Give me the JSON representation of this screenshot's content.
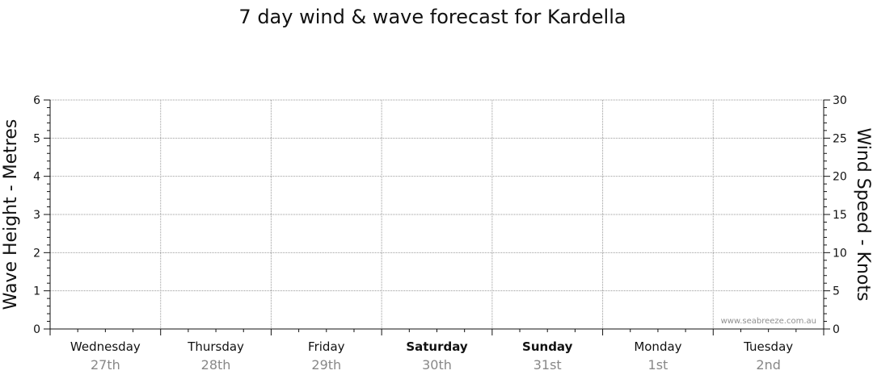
{
  "chart_data": {
    "type": "line",
    "title": "7 day wind & wave forecast for Kardella",
    "ylabel_left": "Wave Height - Metres",
    "ylabel_right": "Wind Speed - Knots",
    "ylim_left": [
      0,
      6
    ],
    "ylim_right": [
      0,
      30
    ],
    "left_ticks": [
      "0",
      "1",
      "2",
      "3",
      "4",
      "5",
      "6"
    ],
    "right_ticks": [
      "0",
      "5",
      "10",
      "15",
      "20",
      "25",
      "30"
    ],
    "categories": [
      {
        "day": "Wednesday",
        "date": "27th",
        "weekend": false
      },
      {
        "day": "Thursday",
        "date": "28th",
        "weekend": false
      },
      {
        "day": "Friday",
        "date": "29th",
        "weekend": false
      },
      {
        "day": "Saturday",
        "date": "30th",
        "weekend": true
      },
      {
        "day": "Sunday",
        "date": "31st",
        "weekend": true
      },
      {
        "day": "Monday",
        "date": "1st",
        "weekend": false
      },
      {
        "day": "Tuesday",
        "date": "2nd",
        "weekend": false
      }
    ],
    "series": [],
    "grid": true,
    "watermark": "www.seabreeze.com.au"
  }
}
